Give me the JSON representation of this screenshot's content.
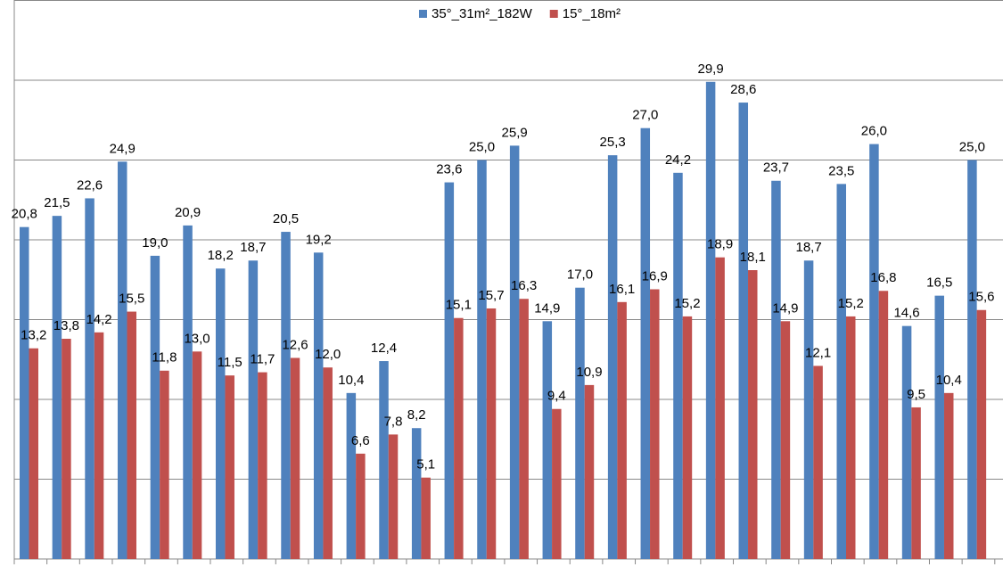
{
  "chart_data": {
    "type": "bar",
    "categories": [
      null,
      null,
      null,
      null,
      null,
      null,
      null,
      null,
      null,
      null,
      null,
      null,
      null,
      null,
      null,
      null,
      null,
      null,
      null,
      null,
      null,
      null,
      null,
      null,
      null,
      null,
      null,
      null,
      null,
      null
    ],
    "series": [
      {
        "name": "35°_31m²_182W",
        "color": "#4f81bd",
        "values": [
          20.8,
          21.5,
          22.6,
          24.9,
          19.0,
          20.9,
          18.2,
          18.7,
          20.5,
          19.2,
          10.4,
          12.4,
          8.2,
          23.6,
          25.0,
          25.9,
          14.9,
          17.0,
          25.3,
          27.0,
          24.2,
          29.9,
          28.6,
          23.7,
          18.7,
          23.5,
          26.0,
          14.6,
          16.5,
          25.0
        ],
        "value_labels": [
          "20,8",
          "21,5",
          "22,6",
          "24,9",
          "19,0",
          "20,9",
          "18,2",
          "18,7",
          "20,5",
          "19,2",
          "10,4",
          "12,4",
          "8,2",
          "23,6",
          "25,0",
          "25,9",
          "14,9",
          "17,0",
          "25,3",
          "27,0",
          "24,2",
          "29,9",
          "28,6",
          "23,7",
          "18,7",
          "23,5",
          "26,0",
          "14,6",
          "16,5",
          "25,0"
        ]
      },
      {
        "name": "15°_18m²",
        "color": "#c0504d",
        "values": [
          13.2,
          13.8,
          14.2,
          15.5,
          11.8,
          13.0,
          11.5,
          11.7,
          12.6,
          12.0,
          6.6,
          7.8,
          5.1,
          15.1,
          15.7,
          16.3,
          9.4,
          10.9,
          16.1,
          16.9,
          15.2,
          18.9,
          18.1,
          14.9,
          12.1,
          15.2,
          16.8,
          9.5,
          10.4,
          15.6
        ],
        "value_labels": [
          "13,2",
          "13,8",
          "14,2",
          "15,5",
          "11,8",
          "13,0",
          "11,5",
          "11,7",
          "12,6",
          "12,0",
          "6,6",
          "7,8",
          "5,1",
          "15,1",
          "15,7",
          "16,3",
          "9,4",
          "10,9",
          "16,1",
          "16,9",
          "15,2",
          "18,9",
          "18,1",
          "14,9",
          "12,1",
          "15,2",
          "16,8",
          "9,5",
          "10,4",
          "15,6"
        ]
      }
    ],
    "ylim": [
      0,
      35
    ],
    "yticks": [
      0,
      5,
      10,
      15,
      20,
      25,
      30,
      35
    ],
    "grid": true,
    "legend": "top"
  }
}
